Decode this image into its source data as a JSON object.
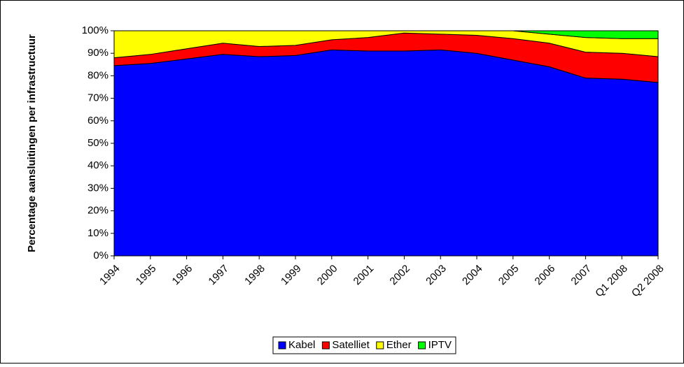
{
  "chart_data": {
    "type": "stacked_area",
    "y_label": "Percentage aansluitingen per infrastructuur",
    "categories": [
      "1994",
      "1995",
      "1996",
      "1997",
      "1998",
      "1999",
      "2000",
      "2001",
      "2002",
      "2003",
      "2004",
      "2005",
      "2006",
      "2007",
      "Q1 2008",
      "Q2 2008"
    ],
    "series": [
      {
        "name": "Kabel",
        "color": "#0000ff",
        "values": [
          84.5,
          85.5,
          87.5,
          89.5,
          88.5,
          89,
          91.5,
          91,
          91,
          91.5,
          90,
          87,
          84,
          79,
          78.5,
          77
        ]
      },
      {
        "name": "Satelliet",
        "color": "#ff0000",
        "values": [
          3.5,
          4,
          4.5,
          5,
          4.5,
          4.5,
          4.5,
          6,
          8,
          7,
          8,
          9.5,
          10.5,
          11.5,
          11.5,
          11.5
        ]
      },
      {
        "name": "Ether",
        "color": "#ffff00",
        "values": [
          12,
          10.5,
          8,
          5.5,
          7,
          6.5,
          4,
          3,
          1,
          1.5,
          2,
          3.5,
          4,
          6.5,
          6.5,
          8
        ]
      },
      {
        "name": "IPTV",
        "color": "#00ff00",
        "values": [
          0,
          0,
          0,
          0,
          0,
          0,
          0,
          0,
          0,
          0,
          0,
          0,
          1.5,
          3,
          3.5,
          3.5
        ]
      }
    ],
    "ylim": [
      0,
      100
    ],
    "yticks": [
      {
        "value": 0,
        "label": "0%"
      },
      {
        "value": 10,
        "label": "10%"
      },
      {
        "value": 20,
        "label": "20%"
      },
      {
        "value": 30,
        "label": "30%"
      },
      {
        "value": 40,
        "label": "40%"
      },
      {
        "value": 50,
        "label": "50%"
      },
      {
        "value": 60,
        "label": "60%"
      },
      {
        "value": 70,
        "label": "70%"
      },
      {
        "value": 80,
        "label": "80%"
      },
      {
        "value": 90,
        "label": "90%"
      },
      {
        "value": 100,
        "label": "100%"
      }
    ],
    "legend": "bottom"
  }
}
